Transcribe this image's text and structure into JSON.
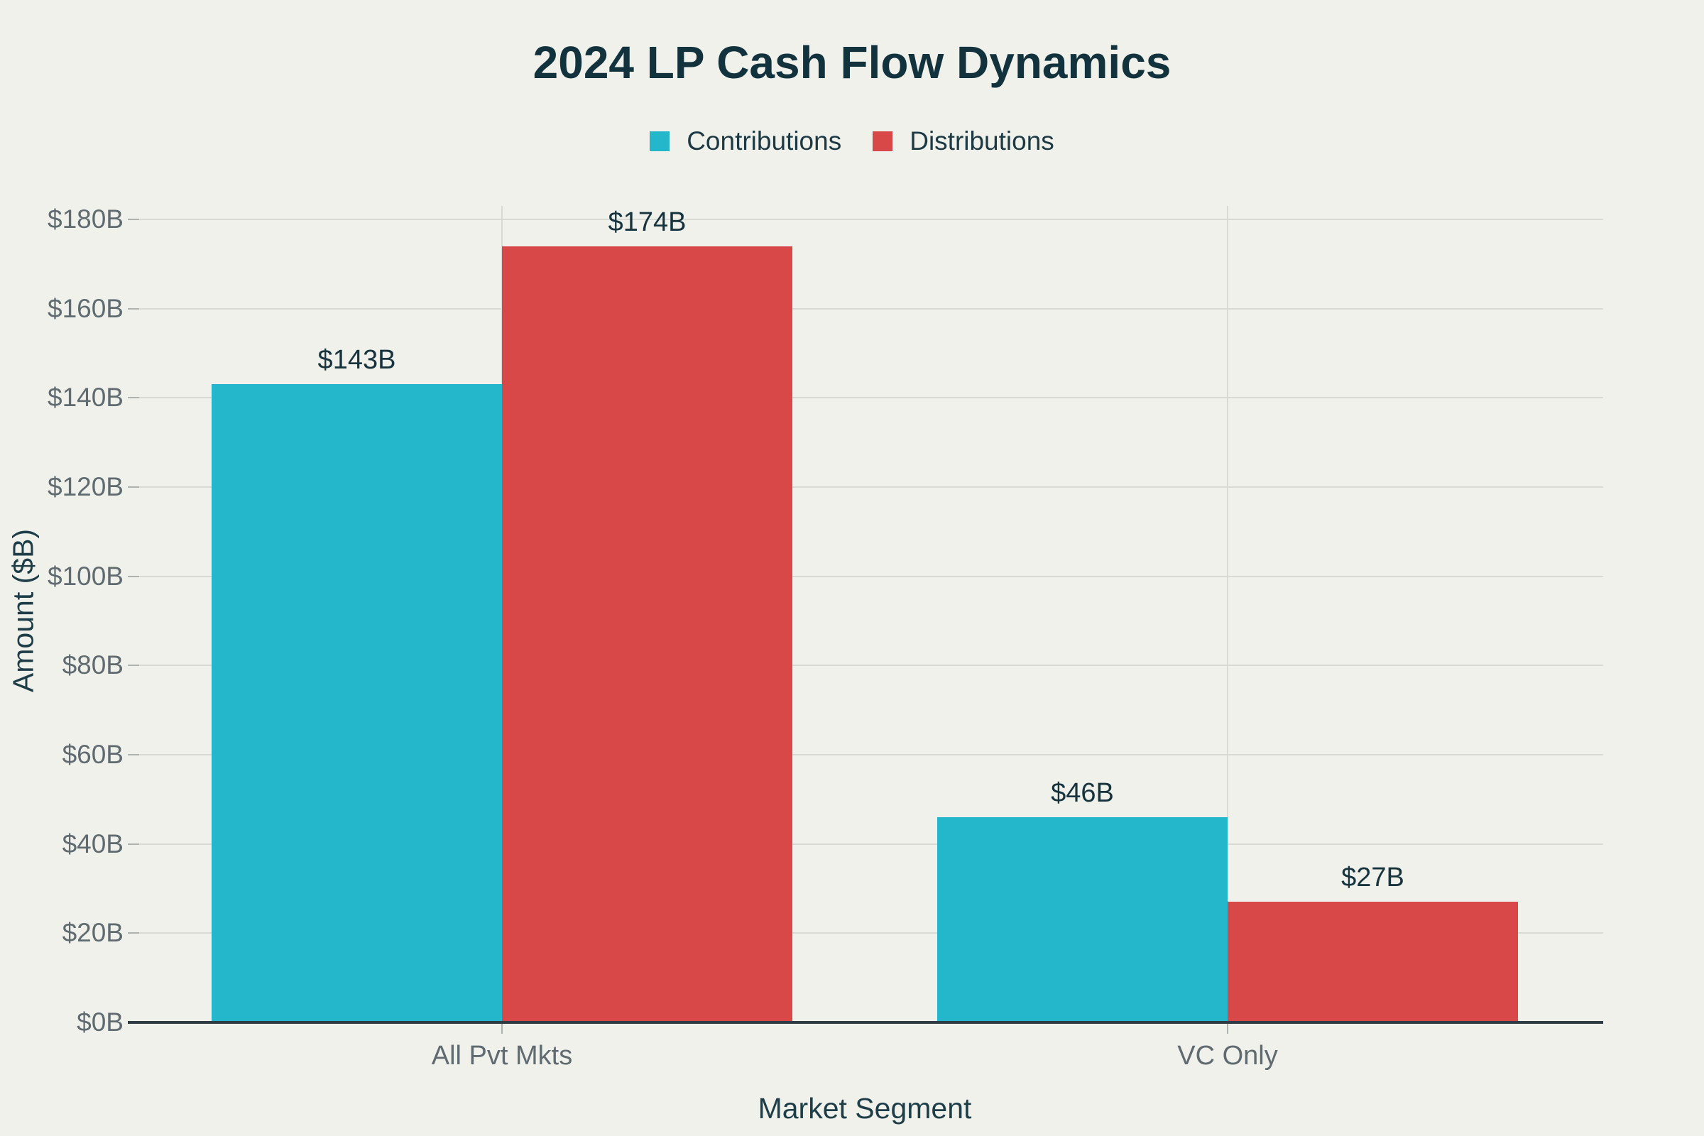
{
  "chart_data": {
    "type": "bar",
    "title": "2024 LP Cash Flow Dynamics",
    "xlabel": "Market Segment",
    "ylabel": "Amount ($B)",
    "categories": [
      "All Pvt Mkts",
      "VC Only"
    ],
    "series": [
      {
        "name": "Contributions",
        "color": "#24B6CA",
        "values": [
          143,
          46
        ],
        "labels": [
          "$143B",
          "$46B"
        ]
      },
      {
        "name": "Distributions",
        "color": "#D94848",
        "values": [
          174,
          27
        ],
        "labels": [
          "$174B",
          "$27B"
        ]
      }
    ],
    "ylim": [
      0,
      180
    ],
    "ytick_step": 20,
    "ytick_labels": [
      "$0B",
      "$20B",
      "$40B",
      "$60B",
      "$80B",
      "$100B",
      "$120B",
      "$140B",
      "$160B",
      "$180B"
    ],
    "grid": true,
    "legend_position": "top"
  },
  "colors": {
    "background": "#F0F1EB",
    "contributions": "#24B6CA",
    "distributions": "#D94848",
    "title_text": "#12333D",
    "axis_title_text": "#1D3E48",
    "tick_text": "#5F6B70",
    "data_label_text": "#16333E",
    "gridline": "#D9DAD3",
    "axis_line": "#2F3C46"
  }
}
